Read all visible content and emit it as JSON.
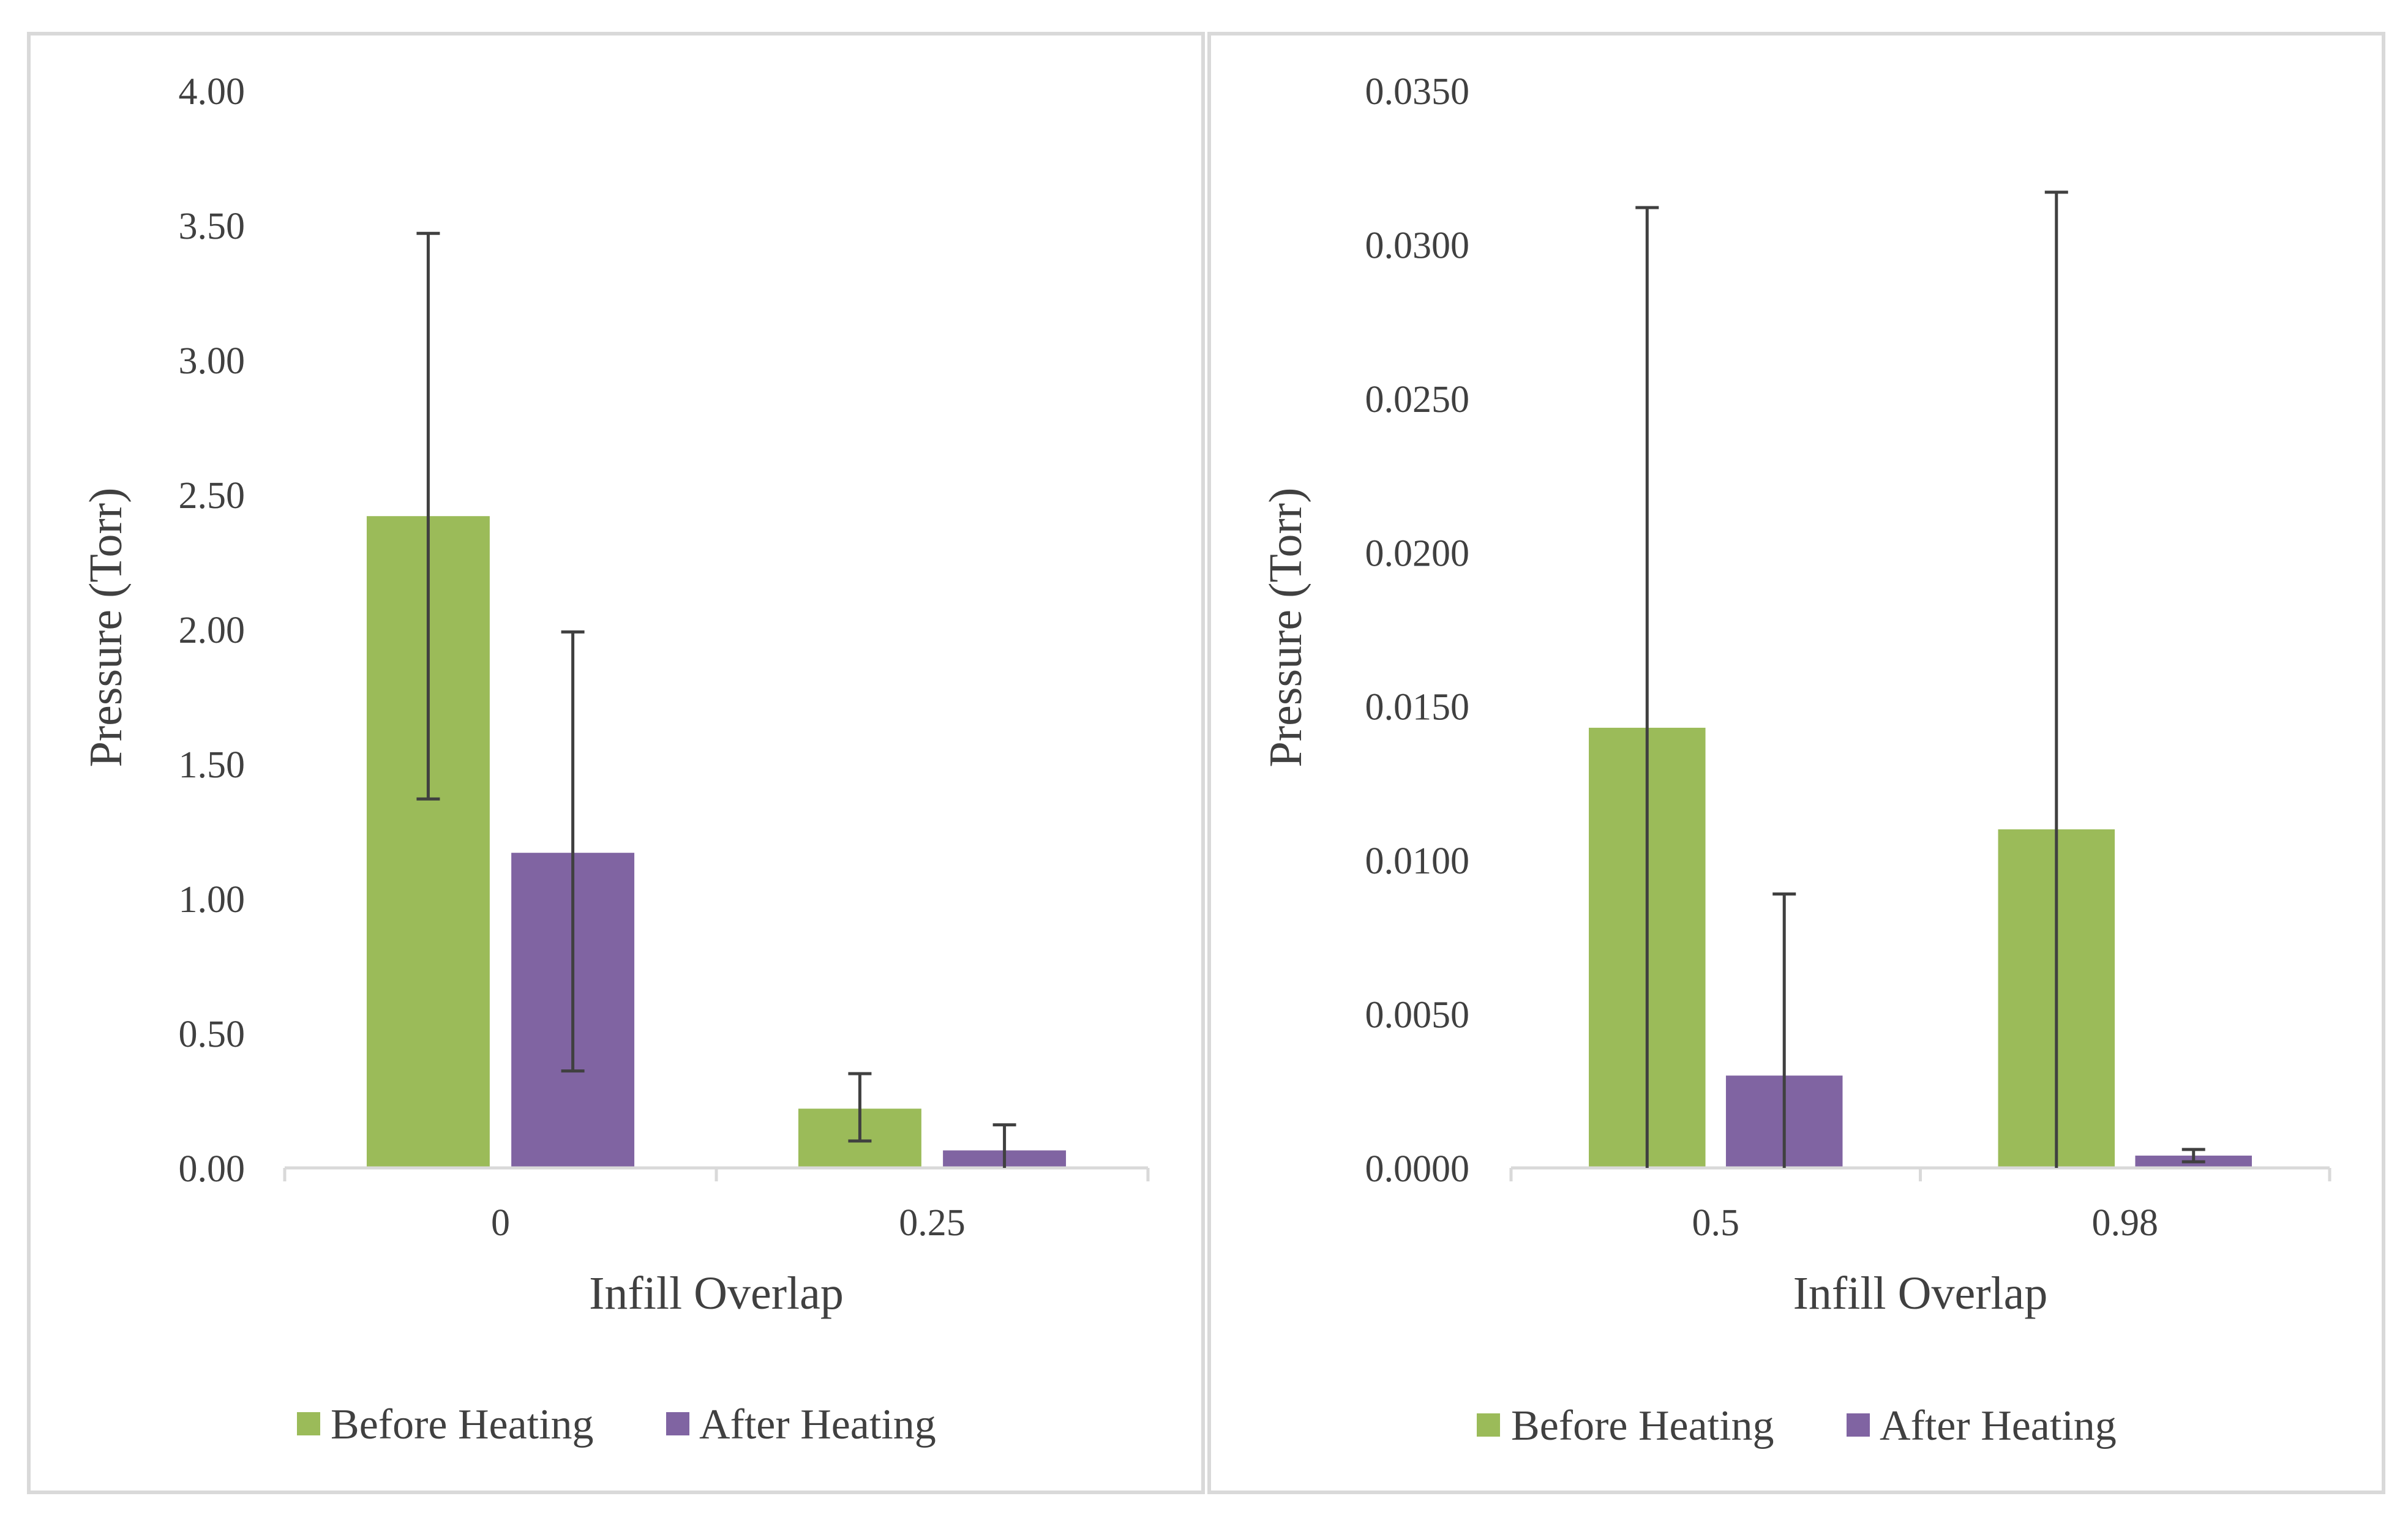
{
  "colors": {
    "before": "#9bbb59",
    "after": "#8064a2",
    "error_bar": "#404040",
    "axis": "#d9d9d9",
    "frame": "#d9d9d9"
  },
  "chart_data": [
    {
      "type": "bar",
      "title": "",
      "xlabel": "Infill Overlap",
      "ylabel": "Pressure (Torr)",
      "categories": [
        "0",
        "0.25"
      ],
      "series": [
        {
          "name": "Before Heating",
          "values": [
            2.42,
            0.22
          ],
          "error_low": [
            1.37,
            0.1
          ],
          "error_high": [
            3.47,
            0.35
          ]
        },
        {
          "name": "After Heating",
          "values": [
            1.17,
            0.065
          ],
          "error_low": [
            0.36,
            0.0
          ],
          "error_high": [
            1.99,
            0.16
          ]
        }
      ],
      "ylim": [
        0,
        4
      ],
      "yticks": [
        "0.00",
        "0.50",
        "1.00",
        "1.50",
        "2.00",
        "2.50",
        "3.00",
        "3.50",
        "4.00"
      ],
      "grid": false,
      "legend": "bottom"
    },
    {
      "type": "bar",
      "title": "",
      "xlabel": "Infill Overlap",
      "ylabel": "Pressure (Torr)",
      "categories": [
        "0.5",
        "0.98"
      ],
      "series": [
        {
          "name": "Before Heating",
          "values": [
            0.0143,
            0.011
          ],
          "error_low": [
            0.0,
            0.0
          ],
          "error_high": [
            0.0312,
            0.0317
          ]
        },
        {
          "name": "After Heating",
          "values": [
            0.003,
            0.0004
          ],
          "error_low": [
            0.0,
            0.0002
          ],
          "error_high": [
            0.0089,
            0.0006
          ]
        }
      ],
      "ylim": [
        0,
        0.035
      ],
      "yticks": [
        "0.0000",
        "0.0050",
        "0.0100",
        "0.0150",
        "0.0200",
        "0.0250",
        "0.0300",
        "0.0350"
      ],
      "grid": false,
      "legend": "bottom"
    }
  ]
}
